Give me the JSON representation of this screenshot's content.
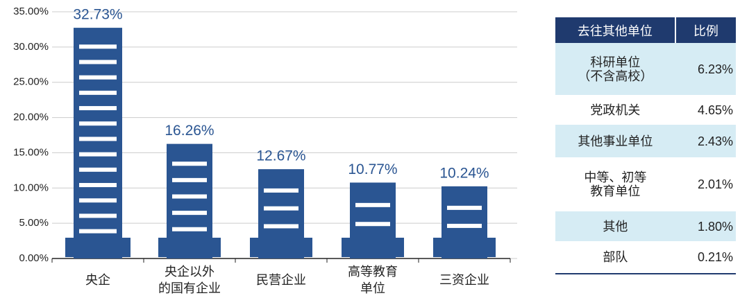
{
  "chart_data": {
    "type": "bar",
    "categories": [
      "央企",
      "央企以外\n的国有企业",
      "民营企业",
      "高等教育\n单位",
      "三资企业"
    ],
    "values": [
      32.73,
      16.26,
      12.67,
      10.77,
      10.24
    ],
    "value_labels": [
      "32.73%",
      "16.26%",
      "12.67%",
      "10.77%",
      "10.24%"
    ],
    "color": "#2a5592",
    "ylim": [
      0,
      35
    ],
    "yticks": [
      {
        "value": 0,
        "label": "0.00%"
      },
      {
        "value": 5,
        "label": "5.00%"
      },
      {
        "value": 10,
        "label": "10.00%"
      },
      {
        "value": 15,
        "label": "15.00%"
      },
      {
        "value": 20,
        "label": "20.00%"
      },
      {
        "value": 25,
        "label": "25.00%"
      },
      {
        "value": 30,
        "label": "30.00%"
      },
      {
        "value": 35,
        "label": "35.00%"
      }
    ],
    "grid": true
  },
  "table": {
    "header": [
      "去往其他单位",
      "比例"
    ],
    "rows": [
      [
        "科研单位\n（不含高校）",
        "6.23%"
      ],
      [
        "党政机关",
        "4.65%"
      ],
      [
        "其他事业单位",
        "2.43%"
      ],
      [
        "中等、初等\n教育单位",
        "2.01%"
      ],
      [
        "其他",
        "1.80%"
      ],
      [
        "部队",
        "0.21%"
      ]
    ]
  }
}
